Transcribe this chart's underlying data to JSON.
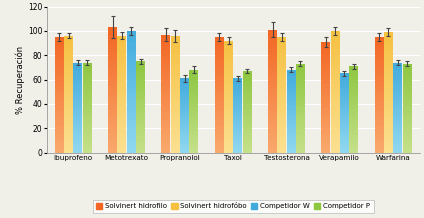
{
  "categories": [
    "Ibuprofeno",
    "Metotrexato",
    "Propranolol",
    "Taxol",
    "Testosterona",
    "Verapamilo",
    "Warfarina"
  ],
  "series": [
    {
      "name": "Solvinert hidrofilo",
      "values": [
        95,
        103,
        97,
        95,
        101,
        91,
        95
      ],
      "errors": [
        3,
        9,
        5,
        3,
        6,
        4,
        3
      ],
      "color_top": "#F26522",
      "color_bottom": "#F9A86C",
      "legend_color": "#F26522"
    },
    {
      "name": "Solvinert hidrofóbo",
      "values": [
        96,
        96,
        96,
        92,
        95,
        100,
        99
      ],
      "errors": [
        2,
        3,
        5,
        3,
        3,
        3,
        3
      ],
      "color_top": "#F5C040",
      "color_bottom": "#FBE090",
      "legend_color": "#F5C040"
    },
    {
      "name": "Competidor W",
      "values": [
        74,
        100,
        61,
        61,
        68,
        65,
        74
      ],
      "errors": [
        2,
        3,
        3,
        2,
        2,
        2,
        2
      ],
      "color_top": "#40AADC",
      "color_bottom": "#90D8F0",
      "legend_color": "#40AADC"
    },
    {
      "name": "Competidor P",
      "values": [
        74,
        75,
        68,
        67,
        73,
        71,
        73
      ],
      "errors": [
        2,
        2,
        3,
        2,
        2,
        2,
        2
      ],
      "color_top": "#8DC63F",
      "color_bottom": "#C5E08A",
      "legend_color": "#8DC63F"
    }
  ],
  "ylabel": "% Recuperación",
  "ylim": [
    0,
    120
  ],
  "yticks": [
    0,
    20,
    40,
    60,
    80,
    100,
    120
  ],
  "bg_color": "#F0EFE8",
  "grid_color": "#FFFFFF"
}
